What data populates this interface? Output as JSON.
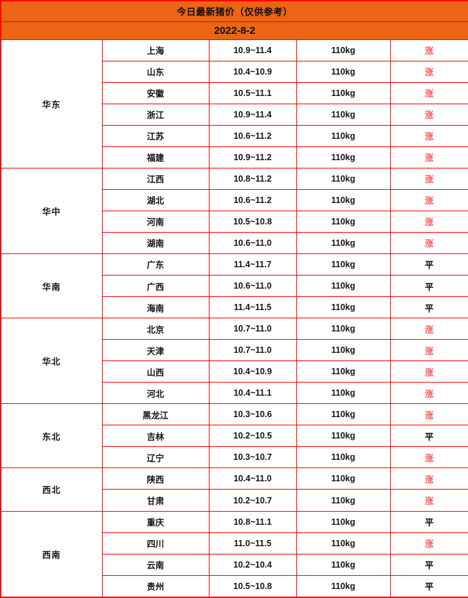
{
  "header": {
    "title": "今日最新猪价（仅供参考）",
    "date": "2022-8-2"
  },
  "colors": {
    "header_bg": "#EB6514",
    "border": "#FF0000",
    "trend_up": "#FA5A5A",
    "trend_flat": "#000000",
    "text": "#141414"
  },
  "chart_data": {
    "type": "table",
    "title": "今日最新猪价（仅供参考）",
    "date": "2022-8-2",
    "regions": [
      {
        "region": "华东",
        "rows": [
          {
            "province": "上海",
            "price_range": "10.9~11.4",
            "weight": "110kg",
            "trend": "涨"
          },
          {
            "province": "山东",
            "price_range": "10.4~10.9",
            "weight": "110kg",
            "trend": "涨"
          },
          {
            "province": "安徽",
            "price_range": "10.5~11.1",
            "weight": "110kg",
            "trend": "涨"
          },
          {
            "province": "浙江",
            "price_range": "10.9~11.4",
            "weight": "110kg",
            "trend": "涨"
          },
          {
            "province": "江苏",
            "price_range": "10.6~11.2",
            "weight": "110kg",
            "trend": "涨"
          },
          {
            "province": "福建",
            "price_range": "10.9~11.2",
            "weight": "110kg",
            "trend": "涨"
          }
        ]
      },
      {
        "region": "华中",
        "rows": [
          {
            "province": "江西",
            "price_range": "10.8~11.2",
            "weight": "110kg",
            "trend": "涨"
          },
          {
            "province": "湖北",
            "price_range": "10.6~11.2",
            "weight": "110kg",
            "trend": "涨"
          },
          {
            "province": "河南",
            "price_range": "10.5~10.8",
            "weight": "110kg",
            "trend": "涨"
          },
          {
            "province": "湖南",
            "price_range": "10.6~11.0",
            "weight": "110kg",
            "trend": "涨"
          }
        ]
      },
      {
        "region": "华南",
        "rows": [
          {
            "province": "广东",
            "price_range": "11.4~11.7",
            "weight": "110kg",
            "trend": "平"
          },
          {
            "province": "广西",
            "price_range": "10.6~11.0",
            "weight": "110kg",
            "trend": "平"
          },
          {
            "province": "海南",
            "price_range": "11.4~11.5",
            "weight": "110kg",
            "trend": "平"
          }
        ]
      },
      {
        "region": "华北",
        "rows": [
          {
            "province": "北京",
            "price_range": "10.7~11.0",
            "weight": "110kg",
            "trend": "涨"
          },
          {
            "province": "天津",
            "price_range": "10.7~11.0",
            "weight": "110kg",
            "trend": "涨"
          },
          {
            "province": "山西",
            "price_range": "10.4~10.9",
            "weight": "110kg",
            "trend": "涨"
          },
          {
            "province": "河北",
            "price_range": "10.4~11.1",
            "weight": "110kg",
            "trend": "涨"
          }
        ]
      },
      {
        "region": "东北",
        "rows": [
          {
            "province": "黑龙江",
            "price_range": "10.3~10.6",
            "weight": "110kg",
            "trend": "涨"
          },
          {
            "province": "吉林",
            "price_range": "10.2~10.5",
            "weight": "110kg",
            "trend": "平"
          },
          {
            "province": "辽宁",
            "price_range": "10.3~10.7",
            "weight": "110kg",
            "trend": "涨"
          }
        ]
      },
      {
        "region": "西北",
        "rows": [
          {
            "province": "陕西",
            "price_range": "10.4~11.0",
            "weight": "110kg",
            "trend": "涨"
          },
          {
            "province": "甘肃",
            "price_range": "10.2~10.7",
            "weight": "110kg",
            "trend": "涨"
          }
        ]
      },
      {
        "region": "西南",
        "rows": [
          {
            "province": "重庆",
            "price_range": "10.8~11.1",
            "weight": "110kg",
            "trend": "平"
          },
          {
            "province": "四川",
            "price_range": "11.0~11.5",
            "weight": "110kg",
            "trend": "涨"
          },
          {
            "province": "云南",
            "price_range": "10.2~10.4",
            "weight": "110kg",
            "trend": "平"
          },
          {
            "province": "贵州",
            "price_range": "10.5~10.8",
            "weight": "110kg",
            "trend": "平"
          }
        ]
      }
    ]
  }
}
